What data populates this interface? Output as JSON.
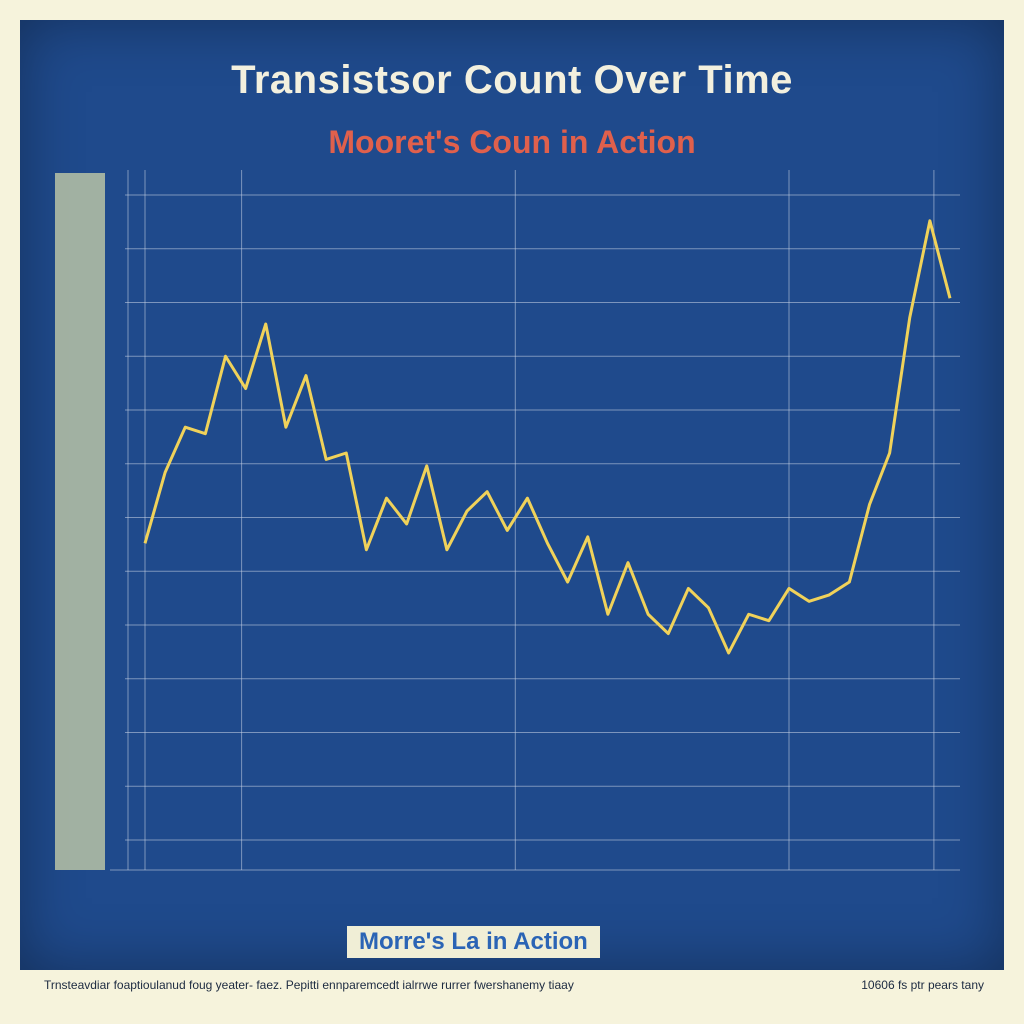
{
  "chart_data": {
    "type": "line",
    "title": "Transistsor Count Over Time",
    "subtitle": "Mooret's Coun in Action",
    "legend_label": "Morre's La in Action",
    "legend_placement": "bottom-center",
    "grid": true,
    "x": [
      0,
      1,
      2,
      3,
      4,
      5,
      6,
      7,
      8,
      9,
      10,
      11,
      12,
      13,
      14,
      15,
      16,
      17,
      18,
      19,
      20,
      21,
      22,
      23,
      24,
      25,
      26,
      27,
      28,
      29,
      30,
      31,
      32,
      33,
      34,
      35,
      36,
      37,
      38,
      39,
      40
    ],
    "xlim": [
      0,
      40
    ],
    "ylim": [
      0,
      100
    ],
    "series": [
      {
        "values": [
          46,
          57,
          64,
          63,
          75,
          70,
          80,
          64,
          72,
          59,
          60,
          45,
          53,
          49,
          58,
          45,
          51,
          54,
          48,
          53,
          46,
          40,
          47,
          35,
          43,
          35,
          32,
          39,
          36,
          29,
          35,
          34,
          39,
          37,
          38,
          40,
          52,
          60,
          81,
          96,
          84
        ]
      }
    ]
  },
  "colors": {
    "panel": "#1f4a8c",
    "line": "#f0d25a",
    "subtitle": "#e0604c",
    "legend_text": "#2b64b5"
  },
  "footer": {
    "left": "Trnsteavdiar foaptioulanud foug yeater- faez. Pepitti ennparemcedt ialrrwe rurrer fwershanemy tiaay",
    "right": "10606 fs ptr pears tany"
  }
}
